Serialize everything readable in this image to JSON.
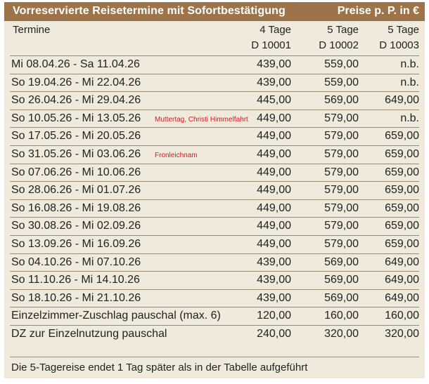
{
  "title": "Vorreservierte Reisetermine mit Sofortbestätigung",
  "price_note": "Preise p. P. in €",
  "header": {
    "termine": "Termine",
    "col1_days": "4 Tage",
    "col1_code": "D 10001",
    "col2_days": "5 Tage",
    "col2_code": "D 10002",
    "col3_days": "5 Tage",
    "col3_code": "D 10003"
  },
  "rows": [
    {
      "date": "Mi  08.04.26 - Sa  11.04.26",
      "note": "",
      "p1": "439,00",
      "p2": "559,00",
      "p3": "n.b."
    },
    {
      "date": "So  19.04.26 - Mi  22.04.26",
      "note": "",
      "p1": "439,00",
      "p2": "559,00",
      "p3": "n.b."
    },
    {
      "date": "So  26.04.26 - Mi  29.04.26",
      "note": "",
      "p1": "445,00",
      "p2": "569,00",
      "p3": "649,00"
    },
    {
      "date": "So  10.05.26 - Mi  13.05.26",
      "note": "Muttertag, Christi Himmelfahrt",
      "p1": "449,00",
      "p2": "579,00",
      "p3": "n.b."
    },
    {
      "date": "So  17.05.26 - Mi  20.05.26",
      "note": "",
      "p1": "449,00",
      "p2": "579,00",
      "p3": "659,00"
    },
    {
      "date": "So  31.05.26 - Mi  03.06.26",
      "note": "Fronleichnam",
      "p1": "449,00",
      "p2": "579,00",
      "p3": "659,00"
    },
    {
      "date": "So  07.06.26 - Mi  10.06.26",
      "note": "",
      "p1": "449,00",
      "p2": "579,00",
      "p3": "659,00"
    },
    {
      "date": "So  28.06.26 - Mi  01.07.26",
      "note": "",
      "p1": "449,00",
      "p2": "579,00",
      "p3": "659,00"
    },
    {
      "date": "So  16.08.26 - Mi  19.08.26",
      "note": "",
      "p1": "449,00",
      "p2": "579,00",
      "p3": "659,00"
    },
    {
      "date": "So  30.08.26 - Mi  02.09.26",
      "note": "",
      "p1": "449,00",
      "p2": "579,00",
      "p3": "659,00"
    },
    {
      "date": "So  13.09.26 - Mi  16.09.26",
      "note": "",
      "p1": "449,00",
      "p2": "579,00",
      "p3": "659,00"
    },
    {
      "date": "So  04.10.26 - Mi  07.10.26",
      "note": "",
      "p1": "439,00",
      "p2": "569,00",
      "p3": "649,00"
    },
    {
      "date": "So  11.10.26 - Mi  14.10.26",
      "note": "",
      "p1": "439,00",
      "p2": "569,00",
      "p3": "649,00"
    },
    {
      "date": "So  18.10.26 - Mi  21.10.26",
      "note": "",
      "p1": "439,00",
      "p2": "569,00",
      "p3": "649,00"
    },
    {
      "date": "Einzelzimmer-Zuschlag pauschal (max. 6)",
      "note": "",
      "p1": "120,00",
      "p2": "160,00",
      "p3": "160,00"
    },
    {
      "date": "DZ zur Einzelnutzung pauschal",
      "note": "",
      "p1": "240,00",
      "p2": "320,00",
      "p3": "320,00"
    }
  ],
  "footer": "Die 5-Tagereise endet 1 Tag später als in der Tabelle aufgeführt",
  "colors": {
    "title_bar": "#9d734a",
    "background": "#efeadb",
    "note": "#e4141e"
  }
}
